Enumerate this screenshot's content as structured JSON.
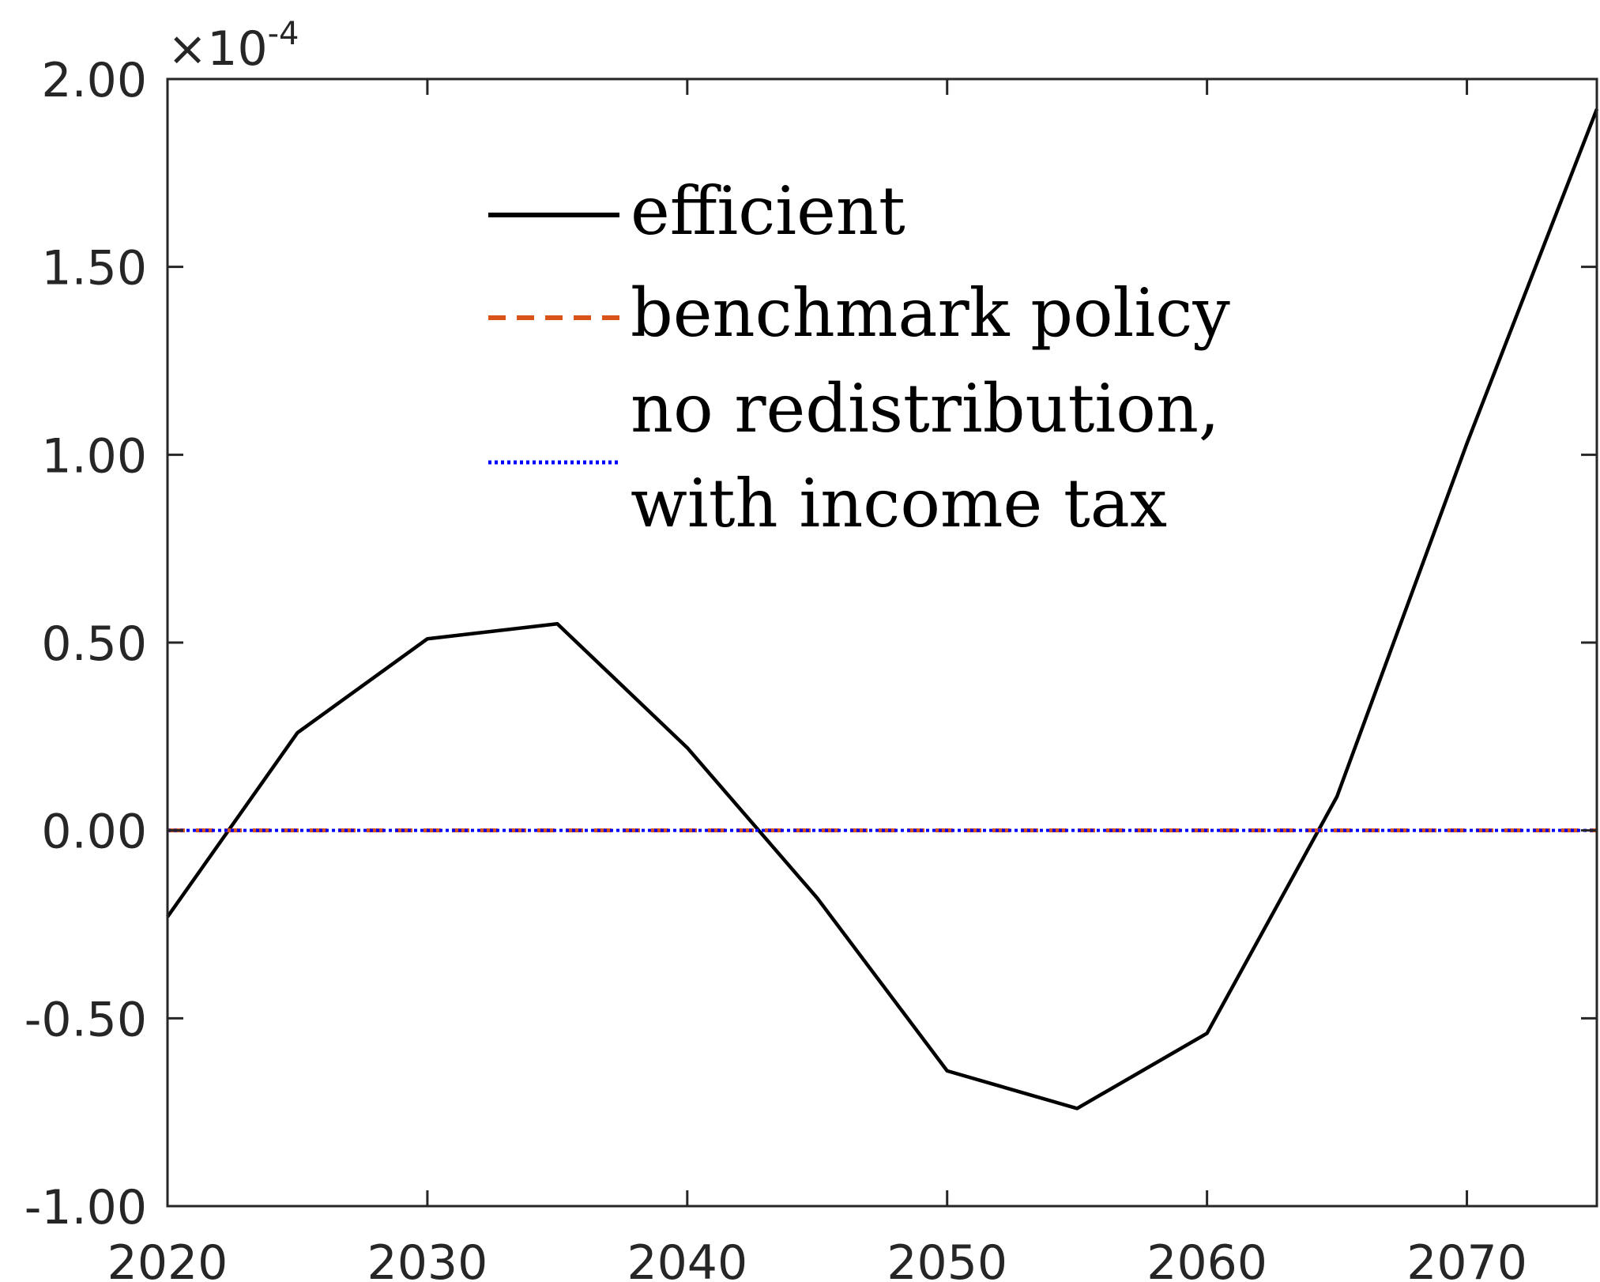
{
  "chart_data": {
    "type": "line",
    "title": "",
    "xlabel": "",
    "ylabel": "",
    "xlim": [
      2020,
      2075
    ],
    "ylim": [
      -1.0,
      2.0
    ],
    "y_multiplier": {
      "times": "×10",
      "exponent": "-4"
    },
    "x_ticks": [
      2020,
      2030,
      2040,
      2050,
      2060,
      2070
    ],
    "x_tick_labels": [
      "2020",
      "2030",
      "2040",
      "2050",
      "2060",
      "2070"
    ],
    "y_ticks": [
      -1.0,
      -0.5,
      0.0,
      0.5,
      1.0,
      1.5,
      2.0
    ],
    "y_tick_labels": [
      "-1.00",
      "-0.50",
      "0.00",
      "0.50",
      "1.00",
      "1.50",
      "2.00"
    ],
    "grid": false,
    "legend_position": "top-center",
    "series": [
      {
        "name": "efficient",
        "color": "#000000",
        "style": "solid",
        "x": [
          2020,
          2025,
          2030,
          2035,
          2040,
          2045,
          2050,
          2055,
          2060,
          2065,
          2070,
          2075
        ],
        "y": [
          -0.23,
          0.26,
          0.51,
          0.55,
          0.22,
          -0.18,
          -0.64,
          -0.74,
          -0.54,
          0.09,
          1.03,
          1.92
        ]
      },
      {
        "name": "benchmark policy",
        "color": "#D95319",
        "style": "dashed",
        "x": [
          2020,
          2075
        ],
        "y": [
          0.0,
          0.0
        ]
      },
      {
        "name": "no redistribution, with income tax",
        "name_lines": [
          "no redistribution,",
          "with income tax"
        ],
        "color": "#0000FF",
        "style": "dotted",
        "x": [
          2020,
          2075
        ],
        "y": [
          0.0,
          0.0
        ]
      }
    ]
  }
}
